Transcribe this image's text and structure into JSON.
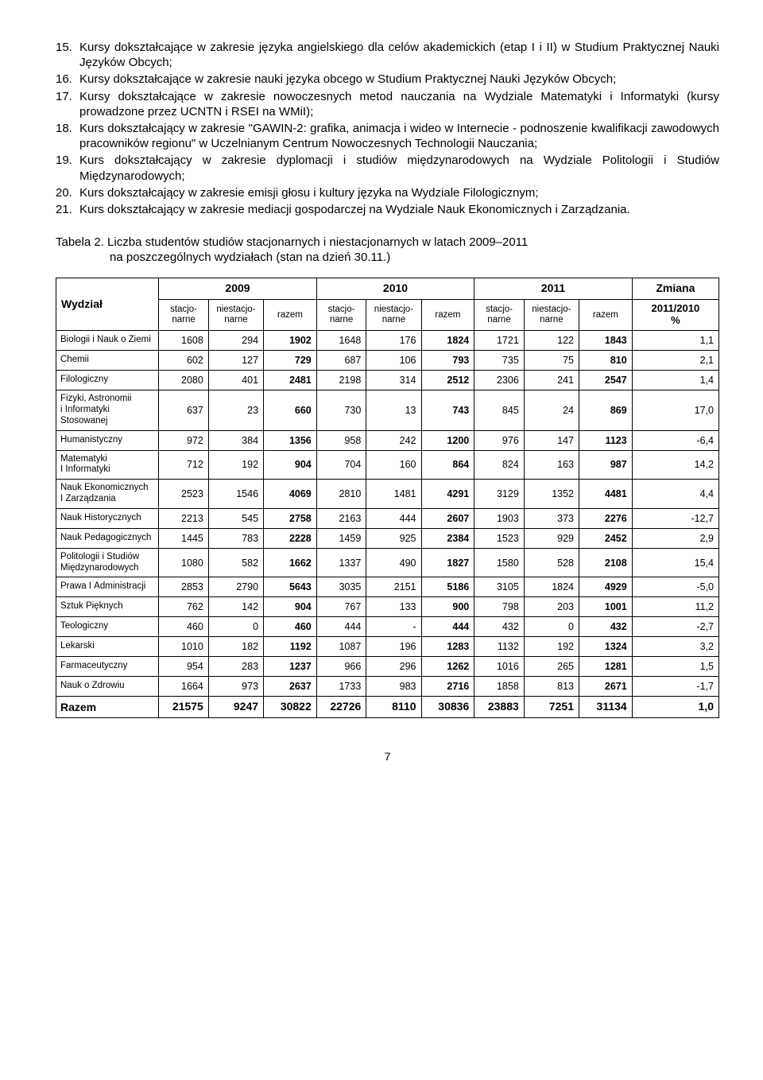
{
  "list": [
    {
      "n": "15.",
      "t": "Kursy dokształcające w zakresie języka angielskiego dla celów akademickich (etap I i II) w Studium Praktycznej Nauki Języków Obcych;"
    },
    {
      "n": "16.",
      "t": "Kursy dokształcające w zakresie nauki języka obcego w  Studium Praktycznej Nauki Języków Obcych;"
    },
    {
      "n": "17.",
      "t": "Kursy dokształcające w zakresie nowoczesnych metod nauczania na Wydziale Matematyki i Informatyki (kursy prowadzone przez UCNTN i RSEI na WMiI);"
    },
    {
      "n": "18.",
      "t": "Kurs dokształcający w zakresie \"GAWIN-2: grafika, animacja i wideo w Internecie - podnoszenie kwalifikacji zawodowych pracowników regionu\" w Uczelnianym  Centrum Nowoczesnych Technologii Nauczania;"
    },
    {
      "n": "19.",
      "t": "Kurs dokształcający w zakresie dyplomacji i studiów międzynarodowych na Wydziale Politologii i Studiów Międzynarodowych;"
    },
    {
      "n": "20.",
      "t": "Kurs dokształcający w zakresie emisji głosu i kultury języka na Wydziale Filologicznym;"
    },
    {
      "n": "21.",
      "t": "Kurs dokształcający w zakresie mediacji gospodarczej na Wydziale Nauk Ekonomicznych i Zarządzania."
    }
  ],
  "caption_line1": "Tabela 2. Liczba studentów studiów stacjonarnych i niestacjonarnych w latach 2009–2011",
  "caption_line2": "na poszczególnych wydziałach (stan na dzień 30.11.)",
  "headers": {
    "wydzial": "Wydział",
    "y2009": "2009",
    "y2010": "2010",
    "y2011": "2011",
    "zmiana": "Zmiana",
    "stacjo": "stacjo-\nnarne",
    "niestacjo": "niestacjo-\nnarne",
    "razem": "razem",
    "zmiana_sub": "2011/2010\n%"
  },
  "rows": [
    {
      "name": "Biologii i Nauk o Ziemi",
      "v": [
        "1608",
        "294",
        "1902",
        "1648",
        "176",
        "1824",
        "1721",
        "122",
        "1843",
        "1,1"
      ]
    },
    {
      "name": "Chemii",
      "v": [
        "602",
        "127",
        "729",
        "687",
        "106",
        "793",
        "735",
        "75",
        "810",
        "2,1"
      ]
    },
    {
      "name": "Filologiczny",
      "v": [
        "2080",
        "401",
        "2481",
        "2198",
        "314",
        "2512",
        "2306",
        "241",
        "2547",
        "1,4"
      ]
    },
    {
      "name": "Fizyki, Astronomii i Informatyki Stosowanej",
      "v": [
        "637",
        "23",
        "660",
        "730",
        "13",
        "743",
        "845",
        "24",
        "869",
        "17,0"
      ]
    },
    {
      "name": "Humanistyczny",
      "v": [
        "972",
        "384",
        "1356",
        "958",
        "242",
        "1200",
        "976",
        "147",
        "1123",
        "-6,4"
      ]
    },
    {
      "name": "Matematyki I Informatyki",
      "v": [
        "712",
        "192",
        "904",
        "704",
        "160",
        "864",
        "824",
        "163",
        "987",
        "14,2"
      ]
    },
    {
      "name": "Nauk Ekonomicznych I Zarządzania",
      "v": [
        "2523",
        "1546",
        "4069",
        "2810",
        "1481",
        "4291",
        "3129",
        "1352",
        "4481",
        "4,4"
      ]
    },
    {
      "name": "Nauk Historycznych",
      "v": [
        "2213",
        "545",
        "2758",
        "2163",
        "444",
        "2607",
        "1903",
        "373",
        "2276",
        "-12,7"
      ]
    },
    {
      "name": "Nauk Pedagogicznych",
      "v": [
        "1445",
        "783",
        "2228",
        "1459",
        "925",
        "2384",
        "1523",
        "929",
        "2452",
        "2,9"
      ]
    },
    {
      "name": "Politologii i Studiów Międzynarodowych",
      "v": [
        "1080",
        "582",
        "1662",
        "1337",
        "490",
        "1827",
        "1580",
        "528",
        "2108",
        "15,4"
      ]
    },
    {
      "name": "Prawa I Administracji",
      "v": [
        "2853",
        "2790",
        "5643",
        "3035",
        "2151",
        "5186",
        "3105",
        "1824",
        "4929",
        "-5,0"
      ]
    },
    {
      "name": "Sztuk Pięknych",
      "v": [
        "762",
        "142",
        "904",
        "767",
        "133",
        "900",
        "798",
        "203",
        "1001",
        "11,2"
      ]
    },
    {
      "name": "Teologiczny",
      "v": [
        "460",
        "0",
        "460",
        "444",
        "-",
        "444",
        "432",
        "0",
        "432",
        "-2,7"
      ]
    },
    {
      "name": "Lekarski",
      "v": [
        "1010",
        "182",
        "1192",
        "1087",
        "196",
        "1283",
        "1132",
        "192",
        "1324",
        "3,2"
      ]
    },
    {
      "name": "Farmaceutyczny",
      "v": [
        "954",
        "283",
        "1237",
        "966",
        "296",
        "1262",
        "1016",
        "265",
        "1281",
        "1,5"
      ]
    },
    {
      "name": "Nauk o Zdrowiu",
      "v": [
        "1664",
        "973",
        "2637",
        "1733",
        "983",
        "2716",
        "1858",
        "813",
        "2671",
        "-1,7"
      ]
    }
  ],
  "total": {
    "name": "Razem",
    "v": [
      "21575",
      "9247",
      "30822",
      "22726",
      "8110",
      "30836",
      "23883",
      "7251",
      "31134",
      "1,0"
    ]
  },
  "bold_cols": [
    2,
    5,
    8
  ],
  "page_number": "7",
  "table_style": {
    "border_color": "#000000",
    "col_widths_pct": [
      15.5,
      7.5,
      8.3,
      8,
      7.5,
      8.3,
      8,
      7.5,
      8.3,
      8,
      13.1
    ]
  }
}
